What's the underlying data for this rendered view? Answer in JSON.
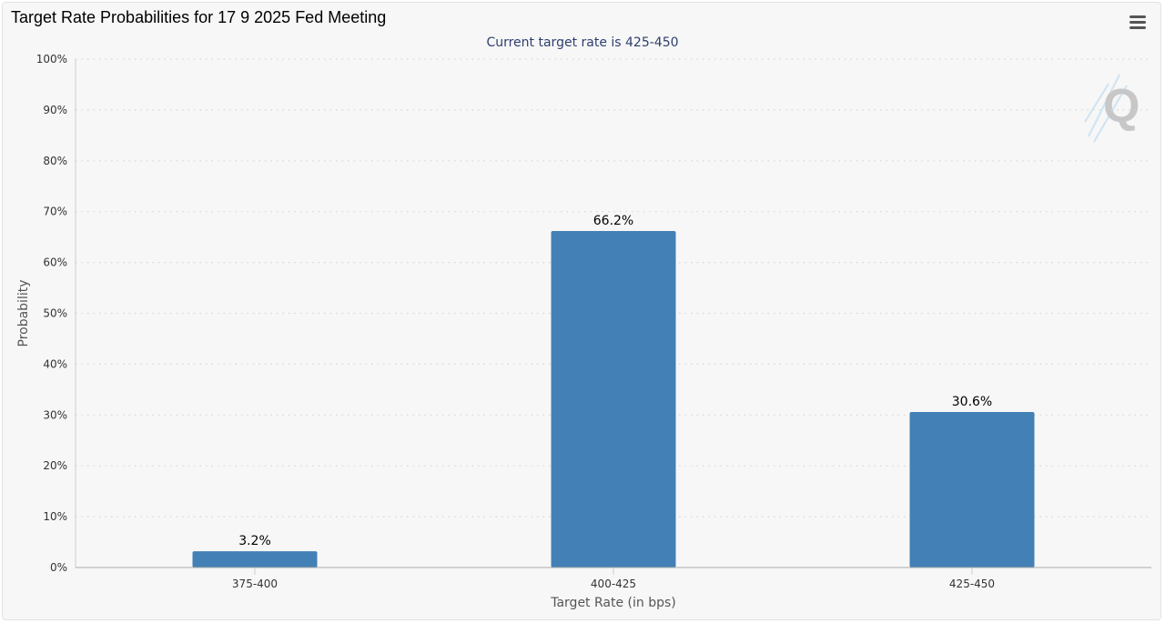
{
  "chart_data": {
    "type": "bar",
    "title": "Target Rate Probabilities for 17 9 2025 Fed Meeting",
    "subtitle": "Current target rate is 425-450",
    "xlabel": "Target Rate (in bps)",
    "ylabel": "Probability",
    "categories": [
      "375-400",
      "400-425",
      "425-450"
    ],
    "values": [
      3.2,
      66.2,
      30.6
    ],
    "data_labels": [
      "3.2%",
      "66.2%",
      "30.6%"
    ],
    "ylim": [
      0,
      100
    ],
    "yticks": [
      0,
      10,
      20,
      30,
      40,
      50,
      60,
      70,
      80,
      90,
      100
    ],
    "ytick_labels": [
      "0%",
      "10%",
      "20%",
      "30%",
      "40%",
      "50%",
      "60%",
      "70%",
      "80%",
      "90%",
      "100%"
    ],
    "grid": true,
    "legend": false,
    "bar_color": "#4380b5"
  },
  "toolbar": {
    "menu_icon": "hamburger-menu-icon"
  },
  "watermark": {
    "icon": "q-logo-watermark-icon"
  }
}
